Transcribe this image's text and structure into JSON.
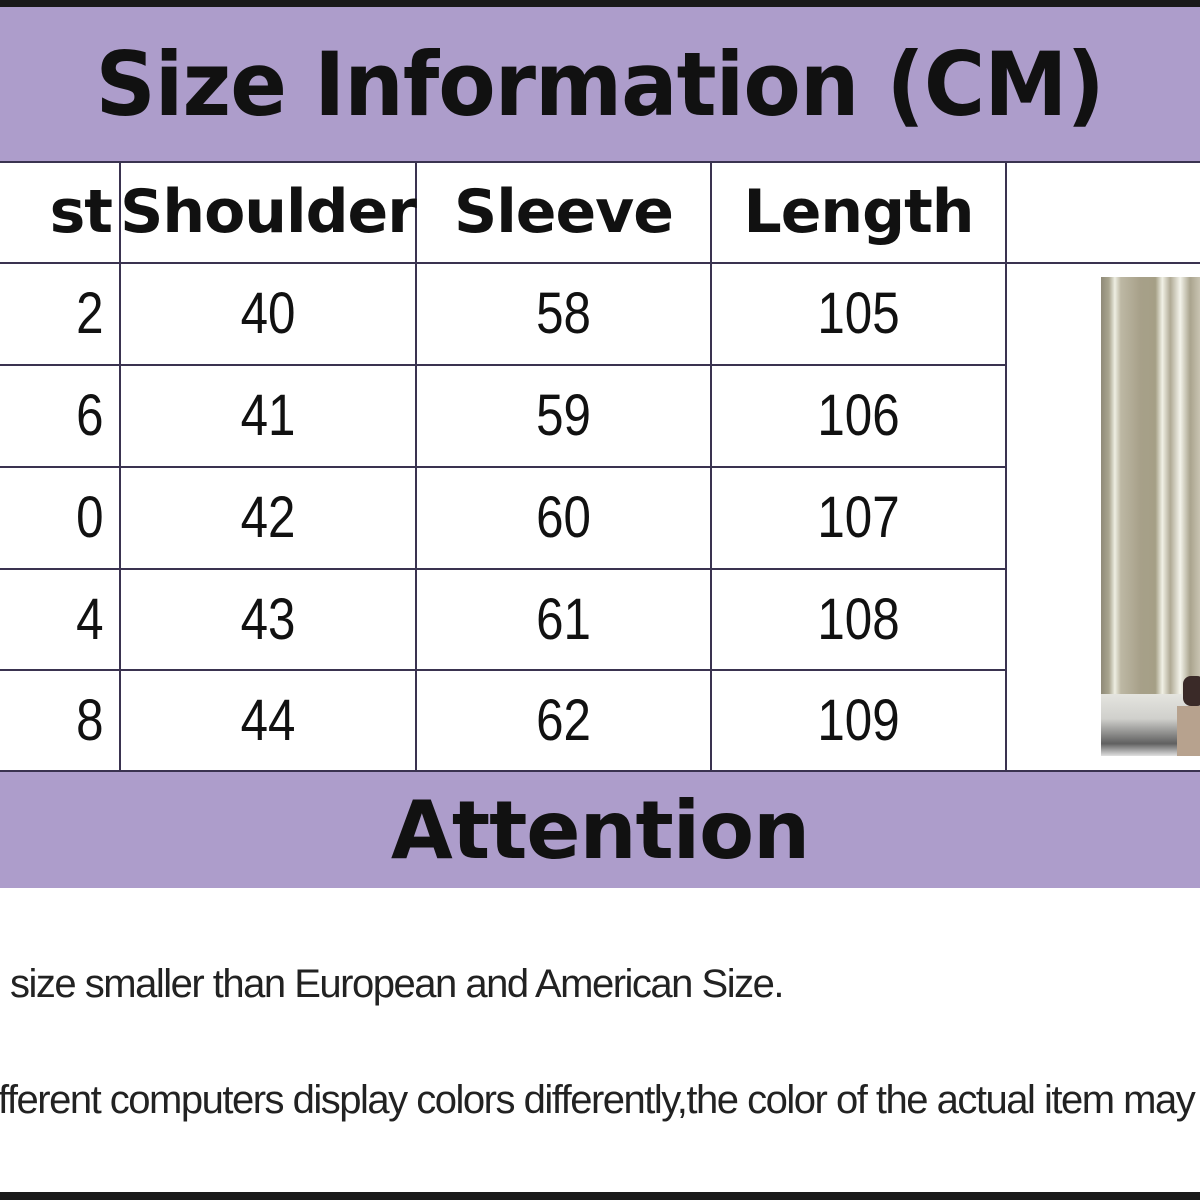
{
  "title": "Size Information (CM)",
  "attention_title": "Attention",
  "colors": {
    "band": "#ad9dcb",
    "grid": "#3a3350",
    "text": "#111111"
  },
  "table": {
    "headers": [
      "st",
      "Shoulder",
      "Sleeve",
      "Length"
    ],
    "rows": [
      [
        "2",
        "40",
        "58",
        "105"
      ],
      [
        "6",
        "41",
        "59",
        "106"
      ],
      [
        "0",
        "42",
        "60",
        "107"
      ],
      [
        "4",
        "43",
        "61",
        "108"
      ],
      [
        "8",
        "44",
        "62",
        "109"
      ]
    ]
  },
  "notes": [
    "size smaller than European and American Size.",
    "fferent computers display colors differently,the color of the actual item may"
  ]
}
